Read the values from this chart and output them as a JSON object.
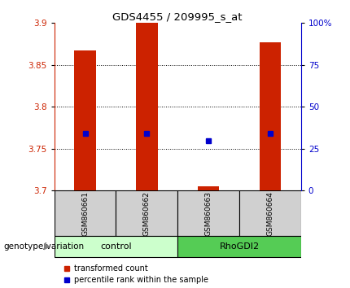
{
  "title": "GDS4455 / 209995_s_at",
  "samples": [
    "GSM860661",
    "GSM860662",
    "GSM860663",
    "GSM860664"
  ],
  "group_ctrl": {
    "name": "control",
    "indices": [
      0,
      1
    ],
    "color": "#ccffcc"
  },
  "group_rhogdi": {
    "name": "RhoGDI2",
    "indices": [
      2,
      3
    ],
    "color": "#55cc55"
  },
  "bar_bottoms": [
    3.7,
    3.7,
    3.7,
    3.7
  ],
  "bar_tops": [
    3.867,
    3.9,
    3.705,
    3.877
  ],
  "percentile_values": [
    3.768,
    3.768,
    3.76,
    3.768
  ],
  "ylim_left": [
    3.7,
    3.9
  ],
  "ylim_right": [
    0,
    100
  ],
  "yticks_left": [
    3.7,
    3.75,
    3.8,
    3.85,
    3.9
  ],
  "ytick_labels_left": [
    "3.7",
    "3.75",
    "3.8",
    "3.85",
    "3.9"
  ],
  "yticks_right": [
    0,
    25,
    50,
    75,
    100
  ],
  "ytick_labels_right": [
    "0",
    "25",
    "50",
    "75",
    "100%"
  ],
  "grid_lines": [
    3.75,
    3.8,
    3.85
  ],
  "bar_color": "#cc2200",
  "blue_color": "#0000cc",
  "bar_width": 0.35,
  "legend_tc": "transformed count",
  "legend_pr": "percentile rank within the sample",
  "genotype_label": "genotype/variation"
}
